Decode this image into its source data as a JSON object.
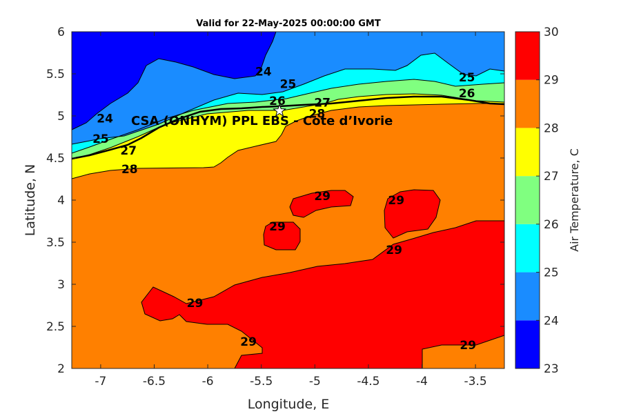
{
  "chart_data": {
    "type": "contour",
    "title": "Valid for 22-May-2025 00:00:00 GMT",
    "annotation": "CSA (ONHYM) PPL EBS - Cote d’Ivorie",
    "xlabel": "Longitude, E",
    "ylabel": "Latitude, N",
    "xlim": [
      -7.27,
      -3.23
    ],
    "ylim": [
      2,
      6
    ],
    "xticks": [
      -7,
      -6.5,
      -6,
      -5.5,
      -5,
      -4.5,
      -4,
      -3.5
    ],
    "xtick_labels": [
      "-7",
      "-6.5",
      "-6",
      "-5.5",
      "-5",
      "-4.5",
      "-4",
      "-3.5"
    ],
    "yticks": [
      2,
      2.5,
      3,
      3.5,
      4,
      4.5,
      5,
      5.5,
      6
    ],
    "ytick_labels": [
      "2",
      "2.5",
      "3",
      "3.5",
      "4",
      "4.5",
      "5",
      "5.5",
      "6"
    ],
    "site_marker": {
      "lon": -5.33,
      "lat": 5.06,
      "symbol": "star"
    },
    "colorbar": {
      "label": "Air Temperature, C",
      "levels": [
        23,
        24,
        25,
        26,
        27,
        28,
        29,
        30
      ],
      "level_labels": [
        "23",
        "24",
        "25",
        "26",
        "27",
        "28",
        "29",
        "30"
      ],
      "colors": [
        "#0000ff",
        "#1a8cff",
        "#00ffff",
        "#80ff80",
        "#ffff00",
        "#ff8000",
        "#ff0000",
        "#800000"
      ]
    },
    "contour_labels": [
      {
        "text": "24",
        "lon": -6.96,
        "lat": 4.97
      },
      {
        "text": "24",
        "lon": -5.48,
        "lat": 5.53
      },
      {
        "text": "25",
        "lon": -7.0,
        "lat": 4.73
      },
      {
        "text": "25",
        "lon": -5.25,
        "lat": 5.38
      },
      {
        "text": "25",
        "lon": -3.58,
        "lat": 5.46
      },
      {
        "text": "26",
        "lon": -5.35,
        "lat": 5.18
      },
      {
        "text": "26",
        "lon": -3.58,
        "lat": 5.27
      },
      {
        "text": "27",
        "lon": -6.74,
        "lat": 4.59
      },
      {
        "text": "27",
        "lon": -4.93,
        "lat": 5.16
      },
      {
        "text": "28",
        "lon": -6.73,
        "lat": 4.37
      },
      {
        "text": "28",
        "lon": -4.98,
        "lat": 5.03
      },
      {
        "text": "29",
        "lon": -4.93,
        "lat": 4.05
      },
      {
        "text": "29",
        "lon": -5.35,
        "lat": 3.69
      },
      {
        "text": "29",
        "lon": -4.24,
        "lat": 4.0
      },
      {
        "text": "29",
        "lon": -4.26,
        "lat": 3.41
      },
      {
        "text": "29",
        "lon": -6.12,
        "lat": 2.78
      },
      {
        "text": "29",
        "lon": -5.62,
        "lat": 2.32
      },
      {
        "text": "29",
        "lon": -3.57,
        "lat": 2.28
      }
    ]
  }
}
